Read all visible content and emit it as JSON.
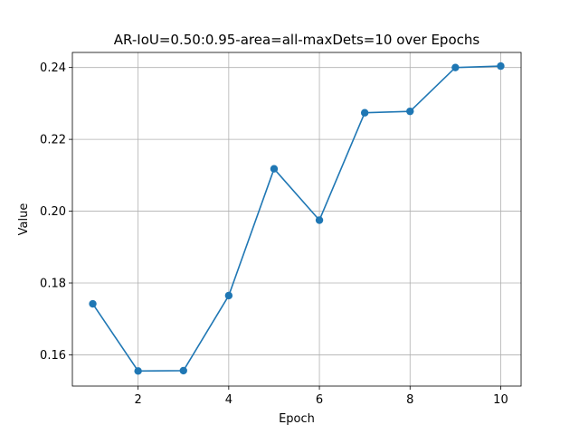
{
  "chart_data": {
    "type": "line",
    "title": "AR-IoU=0.50:0.95-area=all-maxDets=10 over Epochs",
    "xlabel": "Epoch",
    "ylabel": "Value",
    "xlim": [
      0.55,
      10.45
    ],
    "ylim": [
      0.1513,
      0.2442
    ],
    "xticks": [
      2,
      4,
      6,
      8,
      10
    ],
    "yticks": [
      0.16,
      0.18,
      0.2,
      0.22,
      0.24
    ],
    "xtick_labels": [
      "2",
      "4",
      "6",
      "8",
      "10"
    ],
    "ytick_labels": [
      "0.16",
      "0.18",
      "0.20",
      "0.22",
      "0.24"
    ],
    "grid": true,
    "legend": "none",
    "series": [
      {
        "color": "#1f77b4",
        "marker": "circle",
        "x": [
          1,
          2,
          3,
          4,
          5,
          6,
          7,
          8,
          9,
          10
        ],
        "y": [
          0.1742,
          0.1555,
          0.1556,
          0.1765,
          0.2118,
          0.1975,
          0.2274,
          0.2278,
          0.24,
          0.2404
        ]
      }
    ]
  }
}
